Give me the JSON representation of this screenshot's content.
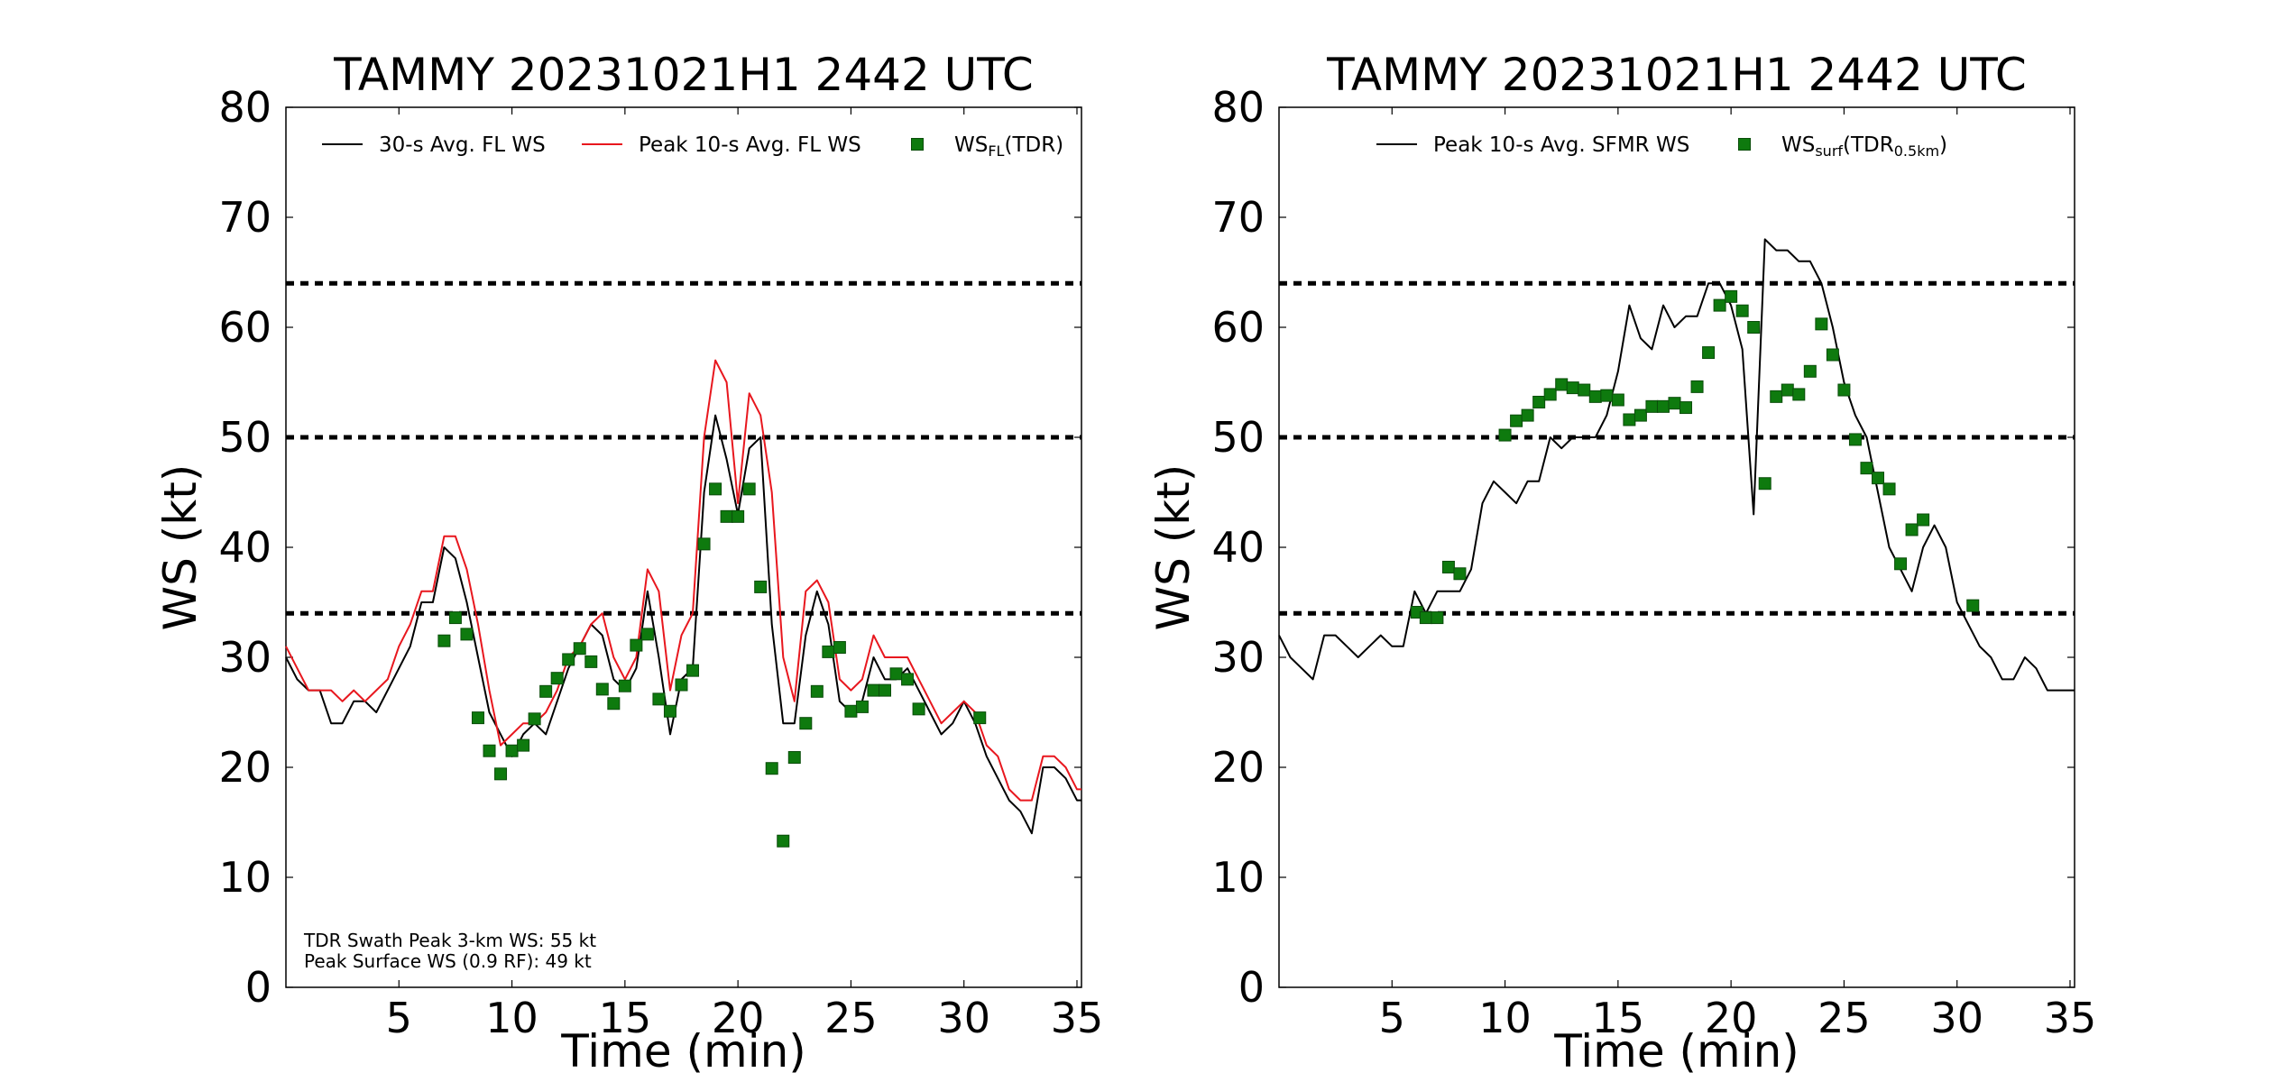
{
  "chart_data": [
    {
      "type": "line",
      "title": "TAMMY 20231021H1 2442 UTC",
      "xlabel": "Time (min)",
      "ylabel": "WS (kt)",
      "xlim": [
        0,
        35.2
      ],
      "ylim": [
        0,
        80
      ],
      "xticks": [
        5,
        10,
        15,
        20,
        25,
        30,
        35
      ],
      "yticks": [
        0,
        10,
        20,
        30,
        40,
        50,
        60,
        70,
        80
      ],
      "grid": false,
      "legend_position": "top",
      "reference_lines": [
        34,
        50,
        64
      ],
      "annotations": [
        "TDR Swath Peak 3-km WS: 55 kt",
        "Peak Surface WS (0.9 RF): 49 kt"
      ],
      "series": [
        {
          "name": "30-s Avg. FL WS",
          "color": "#000000",
          "kind": "line",
          "x": [
            0,
            0.5,
            1,
            1.5,
            2,
            2.5,
            3,
            3.5,
            4,
            4.5,
            5,
            5.5,
            6,
            6.5,
            7,
            7.5,
            8,
            8.5,
            9,
            9.5,
            10,
            10.5,
            11,
            11.5,
            12,
            12.5,
            13,
            13.5,
            14,
            14.5,
            15,
            15.5,
            16,
            16.5,
            17,
            17.5,
            18,
            18.5,
            19,
            19.5,
            20,
            20.5,
            21,
            21.5,
            22,
            22.5,
            23,
            23.5,
            24,
            24.5,
            25,
            25.5,
            26,
            26.5,
            27,
            27.5,
            28,
            28.5,
            29,
            29.5,
            30,
            30.5,
            31,
            31.5,
            32,
            32.5,
            33,
            33.5,
            34,
            34.5,
            35,
            35.2
          ],
          "values": [
            30,
            28,
            27,
            27,
            24,
            24,
            26,
            26,
            25,
            27,
            29,
            31,
            35,
            35,
            40,
            39,
            35,
            30,
            25,
            23,
            21,
            23,
            24,
            23,
            26,
            29,
            31,
            33,
            32,
            28,
            27,
            29,
            36,
            30,
            23,
            28,
            29,
            45,
            52,
            48,
            43,
            49,
            50,
            33,
            24,
            24,
            32,
            36,
            33,
            26,
            25,
            26,
            30,
            28,
            28,
            29,
            27,
            25,
            23,
            24,
            26,
            24,
            21,
            19,
            17,
            16,
            14,
            20,
            20,
            19,
            17,
            17
          ]
        },
        {
          "name": "Peak 10-s Avg. FL WS",
          "color": "#e8171e",
          "kind": "line",
          "x": [
            0,
            0.5,
            1,
            1.5,
            2,
            2.5,
            3,
            3.5,
            4,
            4.5,
            5,
            5.5,
            6,
            6.5,
            7,
            7.5,
            8,
            8.5,
            9,
            9.5,
            10,
            10.5,
            11,
            11.5,
            12,
            12.5,
            13,
            13.5,
            14,
            14.5,
            15,
            15.5,
            16,
            16.5,
            17,
            17.5,
            18,
            18.5,
            19,
            19.5,
            20,
            20.5,
            21,
            21.5,
            22,
            22.5,
            23,
            23.5,
            24,
            24.5,
            25,
            25.5,
            26,
            26.5,
            27,
            27.5,
            28,
            28.5,
            29,
            29.5,
            30,
            30.5,
            31,
            31.5,
            32,
            32.5,
            33,
            33.5,
            34,
            34.5,
            35,
            35.2
          ],
          "values": [
            31,
            29,
            27,
            27,
            27,
            26,
            27,
            26,
            27,
            28,
            31,
            33,
            36,
            36,
            41,
            41,
            38,
            33,
            27,
            22,
            23,
            24,
            24,
            25,
            27,
            30,
            31,
            33,
            34,
            30,
            28,
            30,
            38,
            36,
            27,
            32,
            34,
            50,
            57,
            55,
            44,
            54,
            52,
            45,
            30,
            26,
            36,
            37,
            35,
            28,
            27,
            28,
            32,
            30,
            30,
            30,
            28,
            26,
            24,
            25,
            26,
            25,
            22,
            21,
            18,
            17,
            17,
            21,
            21,
            20,
            18,
            18
          ]
        },
        {
          "name": "WS_FL(TDR)",
          "color": "#0e7a0e",
          "kind": "scatter",
          "x": [
            7,
            7.5,
            8,
            8.5,
            9,
            9.5,
            10,
            10.5,
            11,
            11.5,
            12,
            12.5,
            13,
            13.5,
            14,
            14.5,
            15,
            15.5,
            16,
            16.5,
            17,
            17.5,
            18,
            18.5,
            19,
            19.5,
            20,
            20.5,
            21,
            21.5,
            22,
            22.5,
            23,
            23.5,
            24,
            24.5,
            25,
            25.5,
            26,
            26.5,
            27,
            27.5,
            28,
            30.7
          ],
          "values": [
            31.5,
            33.6,
            32.1,
            24.5,
            21.5,
            19.4,
            21.5,
            22.0,
            24.4,
            26.9,
            28.1,
            29.8,
            30.8,
            29.6,
            27.1,
            25.8,
            27.4,
            31.1,
            32.1,
            26.2,
            25.1,
            27.5,
            28.8,
            40.3,
            45.3,
            42.8,
            42.8,
            45.3,
            36.4,
            19.9,
            13.3,
            20.9,
            24.0,
            26.9,
            30.5,
            30.9,
            25.1,
            25.5,
            27.0,
            27.0,
            28.5,
            28.0,
            25.3,
            24.5
          ]
        }
      ]
    },
    {
      "type": "line",
      "title": "TAMMY 20231021H1 2442 UTC",
      "xlabel": "Time (min)",
      "ylabel": "WS (kt)",
      "xlim": [
        0,
        35.2
      ],
      "ylim": [
        0,
        80
      ],
      "xticks": [
        5,
        10,
        15,
        20,
        25,
        30,
        35
      ],
      "yticks": [
        0,
        10,
        20,
        30,
        40,
        50,
        60,
        70,
        80
      ],
      "grid": false,
      "legend_position": "top",
      "reference_lines": [
        34,
        50,
        64
      ],
      "series": [
        {
          "name": "Peak 10-s Avg. SFMR WS",
          "color": "#000000",
          "kind": "line",
          "x": [
            0,
            0.5,
            1,
            1.5,
            2,
            2.5,
            3,
            3.5,
            4,
            4.5,
            5,
            5.5,
            6,
            6.5,
            7,
            7.5,
            8,
            8.5,
            9,
            9.5,
            10,
            10.5,
            11,
            11.5,
            12,
            12.5,
            13,
            13.5,
            14,
            14.5,
            15,
            15.5,
            16,
            16.5,
            17,
            17.5,
            18,
            18.5,
            19,
            19.5,
            20,
            20.5,
            21,
            21.5,
            22,
            22.5,
            23,
            23.5,
            24,
            24.5,
            25,
            25.5,
            26,
            26.5,
            27,
            27.5,
            28,
            28.5,
            29,
            29.5,
            30,
            30.5,
            31,
            31.5,
            32,
            32.5,
            33,
            33.5,
            34,
            34.5,
            35,
            35.2
          ],
          "values": [
            32,
            30,
            29,
            28,
            32,
            32,
            31,
            30,
            31,
            32,
            31,
            31,
            36,
            34,
            36,
            36,
            36,
            38,
            44,
            46,
            45,
            44,
            46,
            46,
            50,
            49,
            50,
            50,
            50,
            52,
            56,
            62,
            59,
            58,
            62,
            60,
            61,
            61,
            64,
            64,
            62,
            58,
            43,
            68,
            67,
            67,
            66,
            66,
            64,
            60,
            55,
            52,
            50,
            45,
            40,
            38,
            36,
            40,
            42,
            40,
            35,
            33,
            31,
            30,
            28,
            28,
            30,
            29,
            27,
            27,
            27,
            27
          ]
        },
        {
          "name": "WS_surf(TDR_0.5km)",
          "color": "#0e7a0e",
          "kind": "scatter",
          "x": [
            6.1,
            6.5,
            7,
            7.5,
            8,
            10,
            10.5,
            11,
            11.5,
            12,
            12.5,
            13,
            13.5,
            14,
            14.5,
            15,
            15.5,
            16,
            16.5,
            17,
            17.5,
            18,
            18.5,
            19,
            19.5,
            20,
            20.5,
            21,
            21.5,
            22,
            22.5,
            23,
            23.5,
            24,
            24.5,
            25,
            25.5,
            26,
            26.5,
            27,
            27.5,
            28,
            28.5,
            30.7
          ],
          "values": [
            34.1,
            33.6,
            33.6,
            38.2,
            37.6,
            50.2,
            51.5,
            52.0,
            53.2,
            53.9,
            54.8,
            54.5,
            54.3,
            53.7,
            53.8,
            53.4,
            51.6,
            52.0,
            52.8,
            52.8,
            53.1,
            52.7,
            54.6,
            57.7,
            62.0,
            62.8,
            61.5,
            60.0,
            45.8,
            53.7,
            54.3,
            53.9,
            56.0,
            60.3,
            57.5,
            54.3,
            49.8,
            47.2,
            46.3,
            45.3,
            38.5,
            41.6,
            42.5,
            34.7
          ]
        }
      ]
    }
  ]
}
